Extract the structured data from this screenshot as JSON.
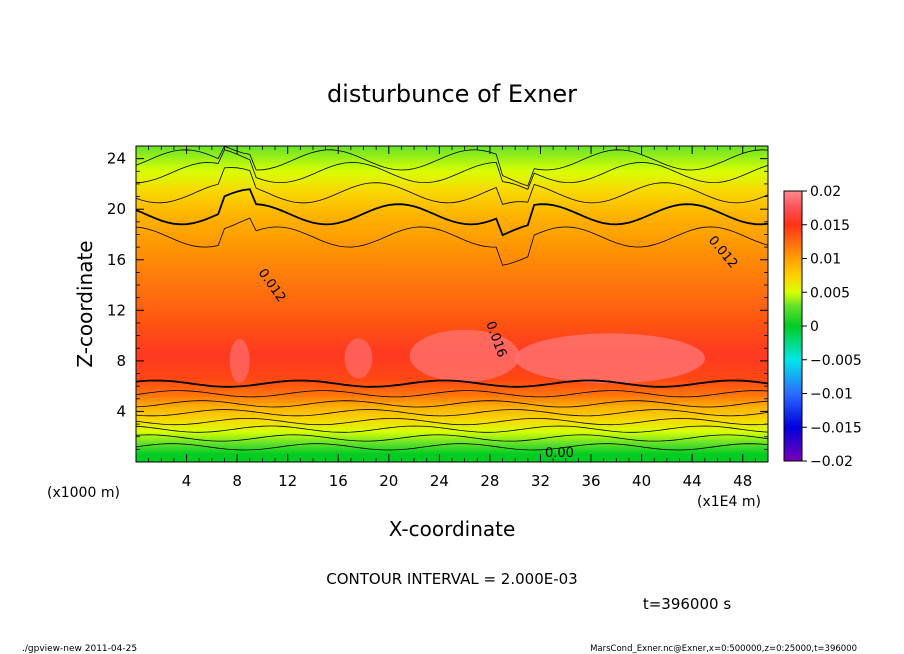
{
  "chart_data": {
    "type": "heatmap",
    "title": "disturbunce of Exner",
    "xlabel": "X-coordinate",
    "ylabel": "Z-coordinate",
    "x_unit_note": "(x1E4 m)",
    "y_unit_note": "(x1000 m)",
    "xlim": [
      0,
      50
    ],
    "ylim": [
      0,
      25
    ],
    "x_ticks": [
      4,
      8,
      12,
      16,
      20,
      24,
      28,
      32,
      36,
      40,
      44,
      48
    ],
    "y_ticks": [
      4,
      8,
      12,
      16,
      20,
      24
    ],
    "colorbar": {
      "range": [
        -0.02,
        0.02
      ],
      "tick_values": [
        0.02,
        0.015,
        0.01,
        0.005,
        0,
        -0.005,
        -0.01,
        -0.015,
        -0.02
      ],
      "tick_labels": [
        "0.02",
        "0.015",
        "0.01",
        "0.005",
        "0",
        "−0.005",
        "−0.01",
        "−0.015",
        "−0.02"
      ]
    },
    "contour_interval_text": "CONTOUR INTERVAL = 2.000E-03",
    "contour_labels": [
      {
        "text": "0.012",
        "x": 10.5,
        "z": 13.8,
        "angle": 55
      },
      {
        "text": "0.012",
        "x": 46.2,
        "z": 16.4,
        "angle": 50
      },
      {
        "text": "0.016",
        "x": 28.2,
        "z": 9.6,
        "angle": 70
      },
      {
        "text": "0.00",
        "x": 33.5,
        "z": 0.4,
        "angle": 0
      }
    ],
    "field_levels": [
      {
        "z": 0.6,
        "value": 0.0
      },
      {
        "z": 1.5,
        "value": 0.003
      },
      {
        "z": 2.4,
        "value": 0.005
      },
      {
        "z": 3.3,
        "value": 0.007
      },
      {
        "z": 4.3,
        "value": 0.009
      },
      {
        "z": 5.3,
        "value": 0.012
      },
      {
        "z": 6.5,
        "value": 0.014
      },
      {
        "z": 8.5,
        "value": 0.0155
      },
      {
        "z": 11.0,
        "value": 0.0135
      },
      {
        "z": 14.0,
        "value": 0.012
      },
      {
        "z": 17.0,
        "value": 0.0105
      },
      {
        "z": 19.5,
        "value": 0.009
      },
      {
        "z": 21.5,
        "value": 0.007
      },
      {
        "z": 23.0,
        "value": 0.005
      },
      {
        "z": 25.0,
        "value": 0.003
      }
    ]
  },
  "time_label": "t=396000 s",
  "footer": {
    "left": "./gpview-new  2011-04-25",
    "right": "MarsCond_Exner.nc@Exner,x=0:500000,z=0:25000,t=396000"
  }
}
